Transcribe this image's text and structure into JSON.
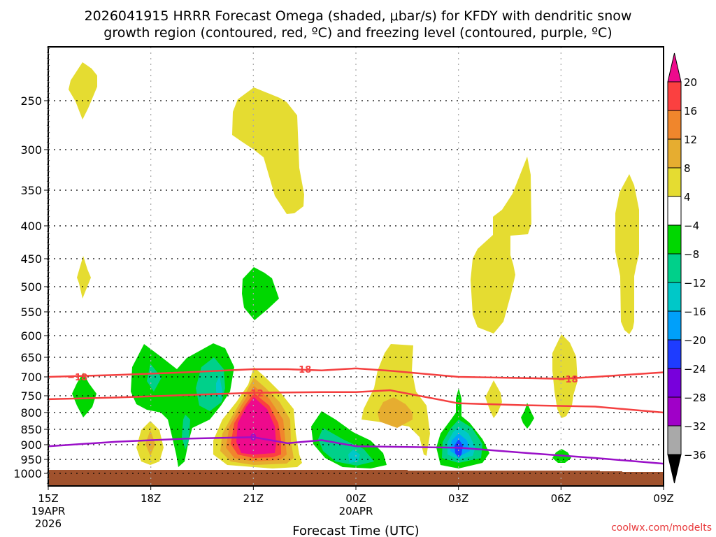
{
  "chart_data": {
    "type": "heatmap",
    "title_line1": "2026041915 HRRR Forecast Omega (shaded, μbar/s) for KFDY with dendritic snow",
    "title_line2": "growth region (contoured, red, ºC) and freezing level (contoured, purple, ºC)",
    "xlabel": "Forecast Time (UTC)",
    "ylabel": "",
    "credit": "coolwx.com/modelts",
    "x_unit": "hours since 15Z 19APR 2026",
    "xlim": [
      0,
      18
    ],
    "ylim_hPa": [
      1000,
      200
    ],
    "grid": true,
    "x_ticks": [
      {
        "hour": 0,
        "label": "15Z",
        "sub1": "19APR",
        "sub2": "2026"
      },
      {
        "hour": 3,
        "label": "18Z",
        "sub1": "",
        "sub2": ""
      },
      {
        "hour": 6,
        "label": "21Z",
        "sub1": "",
        "sub2": ""
      },
      {
        "hour": 9,
        "label": "00Z",
        "sub1": "20APR",
        "sub2": ""
      },
      {
        "hour": 12,
        "label": "03Z",
        "sub1": "",
        "sub2": ""
      },
      {
        "hour": 15,
        "label": "06Z",
        "sub1": "",
        "sub2": ""
      },
      {
        "hour": 18,
        "label": "09Z",
        "sub1": "",
        "sub2": ""
      }
    ],
    "y_ticks": [
      250,
      300,
      350,
      400,
      450,
      500,
      550,
      600,
      650,
      700,
      750,
      800,
      850,
      900,
      950,
      1000
    ],
    "colorbar": {
      "labels": [
        "20",
        "16",
        "12",
        "8",
        "4",
        "−4",
        "−8",
        "−12",
        "−16",
        "−20",
        "−24",
        "−28",
        "−32",
        "−36"
      ],
      "levels": [
        {
          "range": ">20",
          "color": "#ee0a8c"
        },
        {
          "range": "16 to 20",
          "color": "#fb4040"
        },
        {
          "range": "12 to 16",
          "color": "#f0862c"
        },
        {
          "range": "8 to 12",
          "color": "#e6ad30"
        },
        {
          "range": "4 to 8",
          "color": "#e5dc31"
        },
        {
          "range": "-4 to 4",
          "color": "#ffffff"
        },
        {
          "range": "-8 to -4",
          "color": "#00d700"
        },
        {
          "range": "-12 to -8",
          "color": "#00d08a"
        },
        {
          "range": "-16 to -12",
          "color": "#00c8c8"
        },
        {
          "range": "-20 to -16",
          "color": "#00a0fa"
        },
        {
          "range": "-24 to -20",
          "color": "#1e3cff"
        },
        {
          "range": "-28 to -24",
          "color": "#7800dc"
        },
        {
          "range": "-32 to -28",
          "color": "#a000c8"
        },
        {
          "range": "-36 to -32",
          "color": "#a9a9a9"
        },
        {
          "range": "<-36",
          "color": "#000000"
        }
      ]
    },
    "ground_color": "#a0522d",
    "ground_top_hPa": 975,
    "contours": [
      {
        "name": "dendritic-top-18C",
        "label": "−18",
        "color": "#f44040",
        "points": [
          [
            0,
            700
          ],
          [
            2,
            695
          ],
          [
            4,
            688
          ],
          [
            6,
            680
          ],
          [
            7,
            680
          ],
          [
            8,
            683
          ],
          [
            9,
            678
          ],
          [
            10,
            684
          ],
          [
            12,
            700
          ],
          [
            14,
            703
          ],
          [
            15,
            705
          ],
          [
            16,
            700
          ],
          [
            18,
            688
          ]
        ]
      },
      {
        "name": "dendritic-bottom-12C",
        "label": "−12",
        "color": "#f44040",
        "points": [
          [
            0,
            760
          ],
          [
            2,
            755
          ],
          [
            4,
            748
          ],
          [
            6,
            742
          ],
          [
            8,
            740
          ],
          [
            9,
            740
          ],
          [
            10,
            735
          ],
          [
            12,
            772
          ],
          [
            14,
            778
          ],
          [
            16,
            782
          ],
          [
            18,
            800
          ]
        ]
      },
      {
        "name": "freezing-level-0C",
        "label": "0",
        "color": "#9a10c8",
        "points": [
          [
            0,
            905
          ],
          [
            2,
            890
          ],
          [
            4,
            880
          ],
          [
            6,
            875
          ],
          [
            7,
            895
          ],
          [
            8,
            885
          ],
          [
            9,
            905
          ],
          [
            12,
            910
          ],
          [
            14,
            928
          ],
          [
            16,
            945
          ],
          [
            18,
            965
          ]
        ]
      }
    ],
    "contour_labels": [
      {
        "text": "−18",
        "hour": 0.85,
        "hPa": 700,
        "contour": "dendritic-top-18C"
      },
      {
        "text": "−18",
        "hour": 7.4,
        "hPa": 680,
        "contour": "dendritic-top-18C"
      },
      {
        "text": "−18",
        "hour": 15.2,
        "hPa": 705,
        "contour": "dendritic-top-18C"
      },
      {
        "text": "−12",
        "hour": 6.0,
        "hPa": 742,
        "contour": "dendritic-bottom-12C"
      },
      {
        "text": "0",
        "hour": 6.0,
        "hPa": 875,
        "contour": "freezing-level-0C"
      }
    ],
    "omega_features": [
      {
        "name": "upper-yellow-15z",
        "value_range": "4 to 8",
        "center_hour": 0.9,
        "center_hPa": 235
      },
      {
        "name": "upper-yellow-21z",
        "value_range": "4 to 8",
        "center_hour": 6.5,
        "center_hPa": 300
      },
      {
        "name": "mid-yellow-15z",
        "value_range": "4 to 8",
        "center_hour": 0.9,
        "center_hPa": 480
      },
      {
        "name": "mid-green-21z",
        "value_range": "-8 to -4",
        "center_hour": 6.1,
        "center_hPa": 510
      },
      {
        "name": "yellow-plume-04z",
        "value_range": "4 to 8",
        "center_hour": 13.0,
        "center_hPa": 430
      },
      {
        "name": "yellow-plume-08z",
        "value_range": "4 to 8",
        "center_hour": 16.6,
        "center_hPa": 460
      },
      {
        "name": "low-green-15z",
        "value_range": "-8 to -4",
        "center_hour": 0.9,
        "center_hPa": 745
      },
      {
        "name": "low-green-19z",
        "value_range": "-16 to -4",
        "center_hour": 3.5,
        "center_hPa": 720
      },
      {
        "name": "low-yellow-18z",
        "value_range": "4 to 12",
        "center_hour": 3.0,
        "center_hPa": 880
      },
      {
        "name": "strong-ascent-21z",
        "value_range": ">20 core",
        "center_hour": 6.0,
        "center_hPa": 830
      },
      {
        "name": "green-00z",
        "value_range": "-16 to -4",
        "center_hour": 8.6,
        "center_hPa": 915
      },
      {
        "name": "yellow-01z",
        "value_range": "4 to 12",
        "center_hour": 10.5,
        "center_hPa": 780
      },
      {
        "name": "blue-03z",
        "value_range": "-24 to -4",
        "center_hour": 12.0,
        "center_hPa": 890
      },
      {
        "name": "yellow-04z",
        "value_range": "4 to 8",
        "center_hour": 13.0,
        "center_hPa": 760
      },
      {
        "name": "green-05z",
        "value_range": "-8 to -4",
        "center_hour": 14.0,
        "center_hPa": 810
      },
      {
        "name": "yellow-06z",
        "value_range": "4 to 8",
        "center_hour": 15.0,
        "center_hPa": 700
      },
      {
        "name": "green-06z",
        "value_range": "-8 to -4",
        "center_hour": 15.0,
        "center_hPa": 940
      }
    ]
  }
}
